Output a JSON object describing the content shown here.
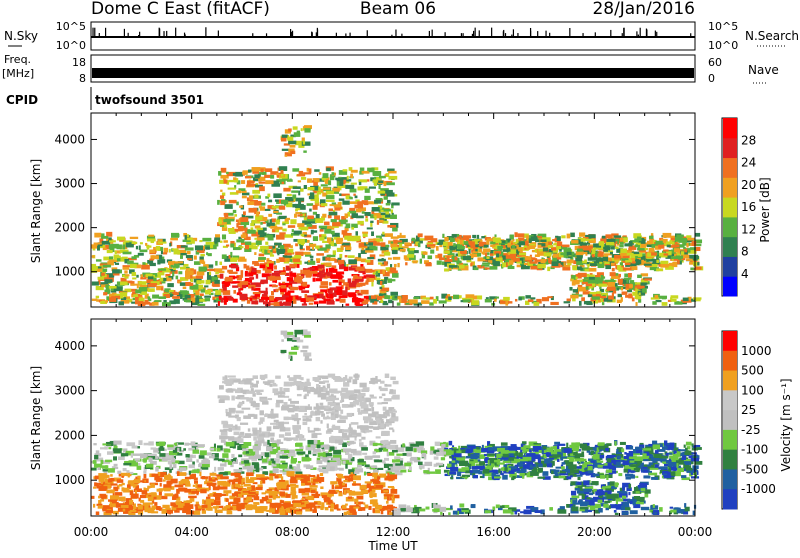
{
  "header": {
    "station": "Dome C East (fitACF)",
    "beam": "Beam 06",
    "date": "28/Jan/2016"
  },
  "top_panels": {
    "nsky_label": "N.Sky",
    "nsearch_label": "N.Search",
    "noise_ticks_left": [
      "10^5",
      "10^0"
    ],
    "noise_ticks_right": [
      "10^5",
      "10^0"
    ],
    "freq_label": "Freq.",
    "freq_unit": "[MHz]",
    "freq_ticks": [
      "18",
      "8"
    ],
    "nave_label": "Nave",
    "nave_ticks": [
      "60",
      "0"
    ],
    "cpid_label": "CPID",
    "cpid_value": "twofsound  3501"
  },
  "colors": {
    "power_scale": [
      "#0000ff",
      "#2040a0",
      "#308050",
      "#58b040",
      "#c8d820",
      "#f0a020",
      "#f07020",
      "#e02020",
      "#ff0000"
    ],
    "velocity_scale": [
      "#ff0000",
      "#f06010",
      "#f0a020",
      "#c8c8c8",
      "#c0c0c0",
      "#70c840",
      "#308040",
      "#2060a0",
      "#2040c0"
    ]
  },
  "chart_data": [
    {
      "type": "heatmap",
      "name": "power",
      "ylabel": "Slant Range [km]",
      "xlabel": "",
      "yticks": [
        "1000",
        "2000",
        "3000",
        "4000"
      ],
      "ylim": [
        200,
        4600
      ],
      "xlim": [
        0,
        24
      ],
      "colorbar_label": "Power [dB]",
      "colorbar_ticks": [
        "4",
        "8",
        "12",
        "16",
        "20",
        "24",
        "28"
      ],
      "colorbar_range": [
        0,
        32
      ]
    },
    {
      "type": "heatmap",
      "name": "velocity",
      "ylabel": "Slant Range [km]",
      "xlabel": "Time UT",
      "yticks": [
        "1000",
        "2000",
        "3000",
        "4000"
      ],
      "xticks": [
        "00:00",
        "04:00",
        "08:00",
        "12:00",
        "16:00",
        "20:00",
        "00:00"
      ],
      "ylim": [
        200,
        4600
      ],
      "xlim": [
        0,
        24
      ],
      "colorbar_label": "Velocity [m s⁻¹]",
      "colorbar_ticks": [
        "1000",
        "500",
        "100",
        "25",
        "-25",
        "-100",
        "-500",
        "-1000"
      ]
    }
  ]
}
